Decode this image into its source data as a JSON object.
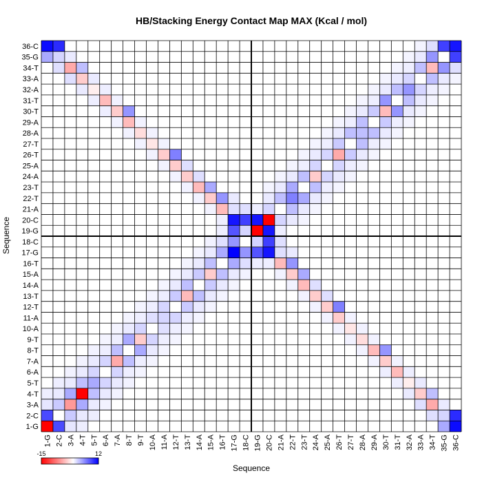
{
  "chart_data": {
    "type": "heatmap",
    "title": "HB/Stacking Energy Contact Map MAX (Kcal / mol)",
    "xlabel": "Sequence",
    "ylabel": "Sequence",
    "labels": [
      "1-G",
      "2-C",
      "3-A",
      "4-T",
      "5-T",
      "6-A",
      "7-A",
      "8-T",
      "9-T",
      "10-A",
      "11-A",
      "12-T",
      "13-T",
      "14-A",
      "15-A",
      "16-T",
      "17-G",
      "18-C",
      "19-G",
      "20-C",
      "21-A",
      "22-T",
      "23-T",
      "24-A",
      "25-A",
      "26-T",
      "27-T",
      "28-A",
      "29-A",
      "30-T",
      "31-T",
      "32-A",
      "33-A",
      "34-T",
      "35-G",
      "36-C"
    ],
    "colorbar": {
      "min": -15,
      "max": 12,
      "min_label": "-15",
      "max_label": "12",
      "low_color": "#ff0000",
      "mid_color": "#ffffff",
      "high_color": "#0000ff"
    },
    "strand_separator_after_index": 18,
    "cells": [
      [
        1,
        2,
        8.5
      ],
      [
        1,
        3,
        1.2
      ],
      [
        1,
        4,
        0.8
      ],
      [
        1,
        35,
        4
      ],
      [
        1,
        36,
        11.5
      ],
      [
        2,
        3,
        2.5
      ],
      [
        2,
        4,
        1
      ],
      [
        2,
        5,
        0.8
      ],
      [
        2,
        34,
        1.5
      ],
      [
        2,
        35,
        2
      ],
      [
        2,
        36,
        10
      ],
      [
        3,
        4,
        4
      ],
      [
        3,
        5,
        1
      ],
      [
        3,
        6,
        0.6
      ],
      [
        3,
        33,
        1.5
      ],
      [
        3,
        34,
        -5
      ],
      [
        3,
        35,
        1
      ],
      [
        4,
        5,
        3
      ],
      [
        4,
        6,
        1
      ],
      [
        4,
        7,
        0.6
      ],
      [
        4,
        32,
        1
      ],
      [
        4,
        33,
        -3
      ],
      [
        4,
        34,
        3
      ],
      [
        5,
        6,
        2
      ],
      [
        5,
        7,
        1
      ],
      [
        5,
        8,
        0.6
      ],
      [
        5,
        31,
        0.8
      ],
      [
        5,
        32,
        -1
      ],
      [
        5,
        33,
        1
      ],
      [
        6,
        7,
        2
      ],
      [
        6,
        8,
        0.8
      ],
      [
        6,
        9,
        0.5
      ],
      [
        6,
        30,
        0.8
      ],
      [
        6,
        31,
        -4
      ],
      [
        6,
        32,
        0.8
      ],
      [
        7,
        8,
        3
      ],
      [
        7,
        9,
        0.8
      ],
      [
        7,
        10,
        0.5
      ],
      [
        7,
        29,
        0.6
      ],
      [
        7,
        30,
        -3
      ],
      [
        7,
        31,
        0.6
      ],
      [
        8,
        9,
        4
      ],
      [
        8,
        10,
        1
      ],
      [
        8,
        11,
        0.5
      ],
      [
        8,
        28,
        0.6
      ],
      [
        8,
        29,
        -4
      ],
      [
        8,
        30,
        5
      ],
      [
        9,
        10,
        2
      ],
      [
        9,
        11,
        0.8
      ],
      [
        9,
        12,
        0.5
      ],
      [
        9,
        27,
        0.6
      ],
      [
        9,
        28,
        -2
      ],
      [
        9,
        29,
        0.6
      ],
      [
        10,
        11,
        1.5
      ],
      [
        10,
        12,
        0.8
      ],
      [
        10,
        13,
        0.5
      ],
      [
        10,
        26,
        0.6
      ],
      [
        10,
        27,
        -1.5
      ],
      [
        10,
        28,
        0.6
      ],
      [
        11,
        12,
        2
      ],
      [
        11,
        13,
        0.8
      ],
      [
        11,
        14,
        0.5
      ],
      [
        11,
        25,
        0.6
      ],
      [
        11,
        26,
        -3
      ],
      [
        11,
        27,
        0.6
      ],
      [
        12,
        13,
        2.5
      ],
      [
        12,
        14,
        1
      ],
      [
        12,
        15,
        0.5
      ],
      [
        12,
        24,
        0.6
      ],
      [
        12,
        25,
        -3
      ],
      [
        12,
        26,
        6
      ],
      [
        13,
        14,
        3
      ],
      [
        13,
        15,
        1
      ],
      [
        13,
        16,
        0.5
      ],
      [
        13,
        23,
        0.6
      ],
      [
        13,
        24,
        -3
      ],
      [
        13,
        25,
        1.5
      ],
      [
        14,
        15,
        2.5
      ],
      [
        14,
        16,
        1
      ],
      [
        14,
        17,
        0.5
      ],
      [
        14,
        22,
        0.6
      ],
      [
        14,
        23,
        -4
      ],
      [
        14,
        24,
        1.5
      ],
      [
        15,
        16,
        3
      ],
      [
        15,
        17,
        1
      ],
      [
        15,
        18,
        0.6
      ],
      [
        15,
        21,
        0.6
      ],
      [
        15,
        22,
        -3
      ],
      [
        15,
        23,
        4
      ],
      [
        16,
        17,
        4
      ],
      [
        16,
        18,
        1.5
      ],
      [
        16,
        19,
        0.8
      ],
      [
        16,
        20,
        0.8
      ],
      [
        16,
        21,
        -4
      ],
      [
        16,
        22,
        5
      ],
      [
        17,
        18,
        5
      ],
      [
        17,
        19,
        8
      ],
      [
        17,
        20,
        11
      ],
      [
        17,
        21,
        1.5
      ],
      [
        17,
        22,
        1
      ],
      [
        18,
        19,
        2
      ],
      [
        18,
        20,
        9
      ],
      [
        18,
        21,
        1.5
      ],
      [
        19,
        20,
        11
      ],
      [
        19,
        21,
        0.8
      ],
      [
        20,
        21,
        2
      ],
      [
        20,
        22,
        1
      ],
      [
        20,
        23,
        0.5
      ],
      [
        21,
        22,
        3
      ],
      [
        21,
        23,
        1
      ],
      [
        21,
        24,
        0.5
      ],
      [
        22,
        23,
        4
      ],
      [
        22,
        24,
        1
      ],
      [
        22,
        25,
        0.5
      ],
      [
        23,
        24,
        3
      ],
      [
        23,
        25,
        0.8
      ],
      [
        23,
        26,
        0.5
      ],
      [
        24,
        25,
        2
      ],
      [
        24,
        26,
        1
      ],
      [
        24,
        27,
        0.5
      ],
      [
        25,
        26,
        2
      ],
      [
        25,
        27,
        0.8
      ],
      [
        25,
        28,
        0.5
      ],
      [
        26,
        27,
        2.5
      ],
      [
        26,
        28,
        1
      ],
      [
        26,
        29,
        0.5
      ],
      [
        27,
        28,
        3
      ],
      [
        27,
        29,
        0.8
      ],
      [
        27,
        30,
        0.5
      ],
      [
        28,
        29,
        3
      ],
      [
        28,
        30,
        1
      ],
      [
        28,
        31,
        0.5
      ],
      [
        29,
        30,
        2.5
      ],
      [
        29,
        31,
        0.8
      ],
      [
        29,
        32,
        0.5
      ],
      [
        30,
        31,
        5
      ],
      [
        30,
        32,
        1
      ],
      [
        30,
        33,
        0.5
      ],
      [
        31,
        32,
        3
      ],
      [
        31,
        33,
        1
      ],
      [
        31,
        34,
        0.5
      ],
      [
        32,
        33,
        2
      ],
      [
        32,
        34,
        0.8
      ],
      [
        32,
        35,
        0.5
      ],
      [
        33,
        34,
        3
      ],
      [
        33,
        35,
        1
      ],
      [
        33,
        36,
        0.5
      ],
      [
        34,
        35,
        5
      ],
      [
        34,
        36,
        1.5
      ],
      [
        35,
        36,
        9
      ],
      [
        1,
        1,
        -15
      ],
      [
        4,
        4,
        -15
      ],
      [
        20,
        20,
        -15
      ],
      [
        17,
        17,
        12
      ]
    ],
    "diagonal_blocks": [
      [
        3,
        3,
        -6
      ],
      [
        5,
        5,
        4
      ],
      [
        7,
        7,
        -5
      ],
      [
        9,
        9,
        -3
      ],
      [
        11,
        11,
        2
      ],
      [
        13,
        13,
        -4
      ],
      [
        15,
        15,
        -3
      ],
      [
        19,
        19,
        -15
      ],
      [
        22,
        22,
        6
      ],
      [
        24,
        24,
        -3
      ],
      [
        26,
        26,
        -5
      ],
      [
        28,
        28,
        3
      ],
      [
        30,
        30,
        -4
      ],
      [
        32,
        32,
        5
      ],
      [
        34,
        34,
        -4
      ],
      [
        36,
        36,
        11
      ]
    ]
  }
}
